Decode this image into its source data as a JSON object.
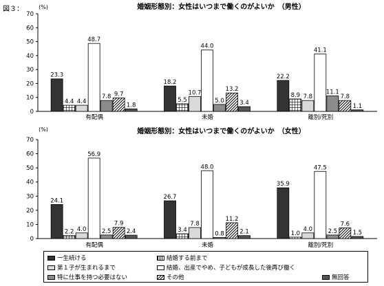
{
  "figure_label": "図３：",
  "chart_data": [
    {
      "type": "bar",
      "title": "婚姻形態別：女性はいつまで働くのがよいか　（男性）",
      "ylabel": "(%)",
      "ylim": [
        0,
        70
      ],
      "yticks": [
        0,
        10,
        20,
        30,
        40,
        50,
        60,
        70
      ],
      "categories": [
        "有配偶",
        "未婚",
        "離別/死別"
      ],
      "series": [
        {
          "name": "一生続ける",
          "values": [
            23.3,
            18.2,
            22.2
          ]
        },
        {
          "name": "結婚する前まで",
          "values": [
            4.4,
            5.5,
            8.9
          ]
        },
        {
          "name": "第１子が生まれるまで",
          "values": [
            4.4,
            10.7,
            7.8
          ]
        },
        {
          "name": "結婚、出産でやめ、子どもが成長した後再び働く",
          "values": [
            48.7,
            44.0,
            41.1
          ]
        },
        {
          "name": "特に仕事を持つ必要はない",
          "values": [
            7.8,
            5.0,
            11.1
          ]
        },
        {
          "name": "その他",
          "values": [
            9.7,
            13.2,
            7.8
          ]
        },
        {
          "name": "無回答",
          "values": [
            1.8,
            3.4,
            1.1
          ]
        }
      ]
    },
    {
      "type": "bar",
      "title": "婚姻形態別：女性はいつまで働くのがよいか　（女性）",
      "ylabel": "(%)",
      "ylim": [
        0,
        70
      ],
      "yticks": [
        0,
        10,
        20,
        30,
        40,
        50,
        60,
        70
      ],
      "categories": [
        "有配偶",
        "未婚",
        "離別/死別"
      ],
      "series": [
        {
          "name": "一生続ける",
          "values": [
            24.1,
            26.7,
            35.9
          ]
        },
        {
          "name": "結婚する前まで",
          "values": [
            2.2,
            3.4,
            1.0
          ]
        },
        {
          "name": "第１子が生まれるまで",
          "values": [
            4.0,
            7.8,
            4.0
          ]
        },
        {
          "name": "結婚、出産でやめ、子どもが成長した後再び働く",
          "values": [
            56.9,
            48.0,
            47.5
          ]
        },
        {
          "name": "特に仕事を持つ必要はない",
          "values": [
            2.5,
            0.8,
            2.5
          ]
        },
        {
          "name": "その他",
          "values": [
            7.9,
            11.2,
            7.6
          ]
        },
        {
          "name": "無回答",
          "values": [
            2.4,
            2.1,
            1.5
          ]
        }
      ]
    }
  ],
  "legend": [
    {
      "label": "一生続ける",
      "style": "black"
    },
    {
      "label": "結婚する前まで",
      "style": "check"
    },
    {
      "label": "第１子が生まれるまで",
      "style": "lightgray"
    },
    {
      "label": "結婚、出産でやめ、子どもが成長した後再び働く",
      "style": "white"
    },
    {
      "label": "特に仕事を持つ必要はない",
      "style": "gray"
    },
    {
      "label": "その他",
      "style": "hatch"
    },
    {
      "label": "無回答",
      "style": "darkgray"
    }
  ],
  "colors": {
    "black": "#333333",
    "lightgray": "#d9d9d9",
    "white": "#ffffff",
    "gray": "#8c8c8c",
    "darkgray": "#555555"
  }
}
